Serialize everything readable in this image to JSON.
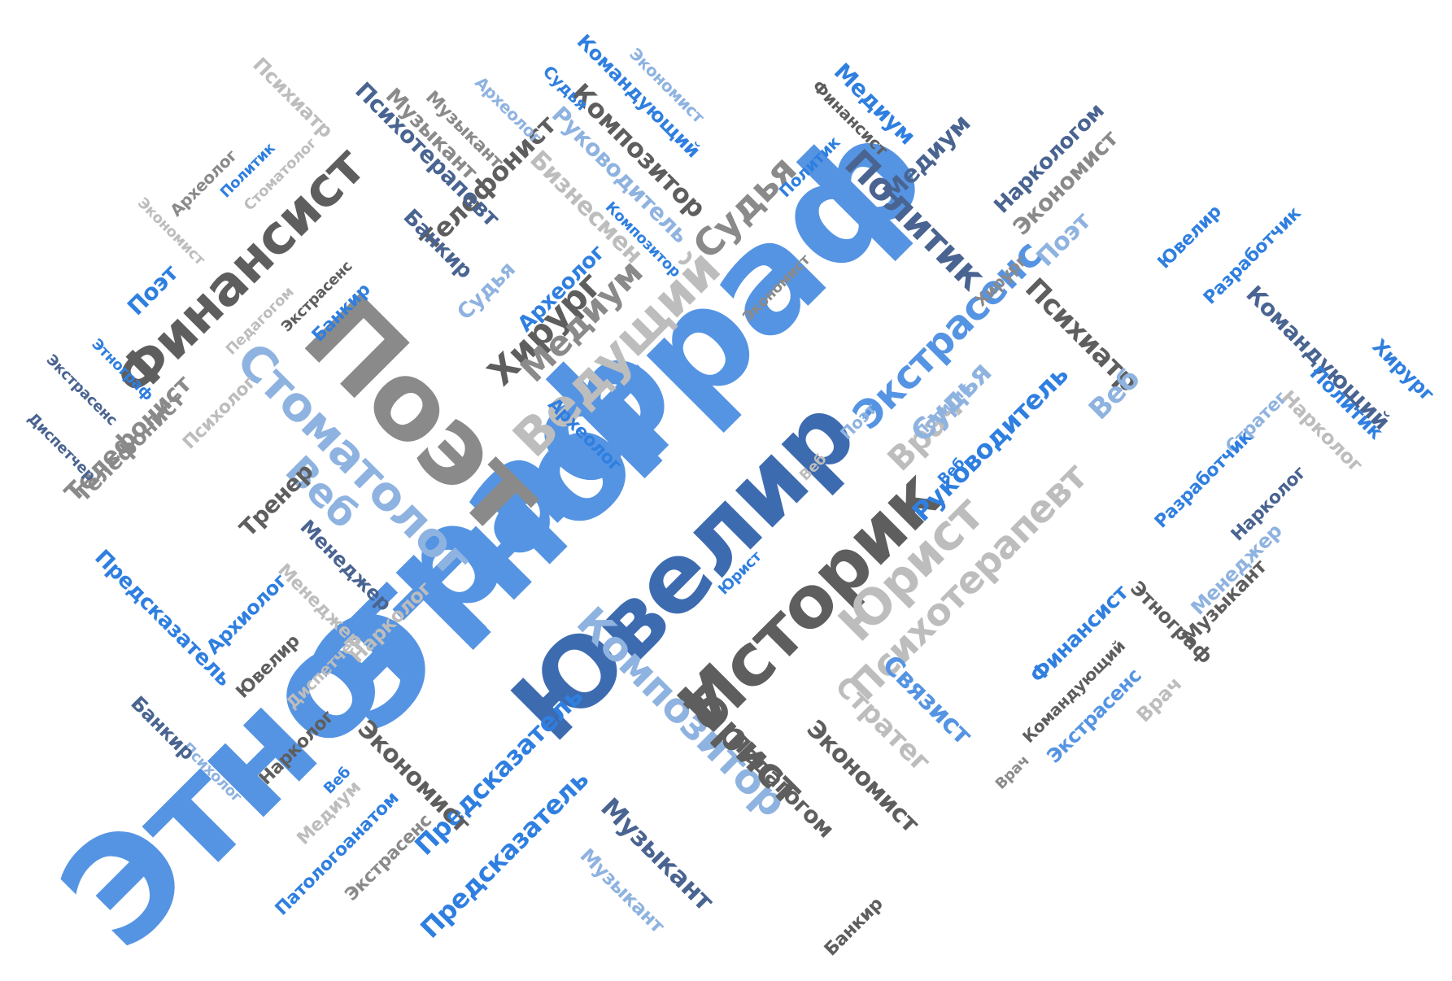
{
  "colors": {
    "blue_bright": "#2f7fe0",
    "blue_mid": "#5594e3",
    "blue_light": "#8fb3e0",
    "blue_dark": "#3d6bb0",
    "slate": "#4a6491",
    "gray_dark": "#5e5e5e",
    "gray_mid": "#8a8a8a",
    "gray_light": "#bdbdbd"
  },
  "words": [
    {
      "text": "Этнограф",
      "color": "blue_mid"
    },
    {
      "text": "Этнограф",
      "color": "blue_mid"
    },
    {
      "text": "Ювелир",
      "color": "blue_dark"
    },
    {
      "text": "Поэт",
      "color": "gray_mid"
    },
    {
      "text": "Историк",
      "color": "gray_dark"
    },
    {
      "text": "Финансист",
      "color": "gray_dark"
    },
    {
      "text": "Стоматолог",
      "color": "blue_light"
    },
    {
      "text": "Ведущий",
      "color": "gray_light"
    },
    {
      "text": "Юрист",
      "color": "gray_light"
    },
    {
      "text": "Психотерапевт",
      "color": "gray_light"
    },
    {
      "text": "Экстрасенс",
      "color": "blue_mid"
    },
    {
      "text": "Композитор",
      "color": "blue_light"
    },
    {
      "text": "Хирург",
      "color": "gray_dark"
    },
    {
      "text": "Медиум",
      "color": "gray_mid"
    },
    {
      "text": "Судья",
      "color": "gray_mid"
    },
    {
      "text": "Политик",
      "color": "slate"
    },
    {
      "text": "Юрист",
      "color": "gray_dark"
    },
    {
      "text": "Руководитель",
      "color": "blue_bright"
    },
    {
      "text": "Психиатр",
      "color": "gray_dark"
    },
    {
      "text": "Веб",
      "color": "blue_light"
    },
    {
      "text": "Врач",
      "color": "gray_light"
    },
    {
      "text": "Предсказатель",
      "color": "blue_bright"
    },
    {
      "text": "Композитор",
      "color": "gray_dark"
    },
    {
      "text": "Руководитель",
      "color": "blue_light"
    },
    {
      "text": "Бизнесмен",
      "color": "gray_light"
    },
    {
      "text": "Телефонист",
      "color": "gray_dark"
    },
    {
      "text": "Телефонист",
      "color": "gray_mid"
    },
    {
      "text": "Музыкант",
      "color": "gray_mid"
    },
    {
      "text": "Командующий",
      "color": "blue_bright"
    },
    {
      "text": "Экономист",
      "color": "blue_light"
    },
    {
      "text": "Медиум",
      "color": "blue_bright"
    },
    {
      "text": "Финансист",
      "color": "gray_dark"
    },
    {
      "text": "Медиум",
      "color": "slate"
    },
    {
      "text": "Наркологом",
      "color": "slate"
    },
    {
      "text": "Экономист",
      "color": "gray_mid"
    },
    {
      "text": "Поэт",
      "color": "blue_light"
    },
    {
      "text": "Ювелир",
      "color": "blue_bright"
    },
    {
      "text": "Разработчик",
      "color": "blue_bright"
    },
    {
      "text": "Командующий",
      "color": "slate"
    },
    {
      "text": "Хирург",
      "color": "blue_bright"
    },
    {
      "text": "Политик",
      "color": "blue_bright"
    },
    {
      "text": "Нарколог",
      "color": "gray_light"
    },
    {
      "text": "Стратег",
      "color": "blue_light"
    },
    {
      "text": "Разработчик",
      "color": "blue_bright"
    },
    {
      "text": "Нарколог",
      "color": "slate"
    },
    {
      "text": "Менеджер",
      "color": "blue_light"
    },
    {
      "text": "Музыкант",
      "color": "gray_dark"
    },
    {
      "text": "Этнограф",
      "color": "gray_dark"
    },
    {
      "text": "Финансист",
      "color": "blue_bright"
    },
    {
      "text": "Командующий",
      "color": "gray_dark"
    },
    {
      "text": "Экстрасенс",
      "color": "blue_mid"
    },
    {
      "text": "Врач",
      "color": "gray_light"
    },
    {
      "text": "Связист",
      "color": "blue_mid"
    },
    {
      "text": "Стратег",
      "color": "gray_light"
    },
    {
      "text": "Экономист",
      "color": "gray_dark"
    },
    {
      "text": "Педагогом",
      "color": "gray_dark"
    },
    {
      "text": "Врач",
      "color": "gray_mid"
    },
    {
      "text": "Банкир",
      "color": "gray_dark"
    },
    {
      "text": "Музыкант",
      "color": "slate"
    },
    {
      "text": "Музыкант",
      "color": "blue_light"
    },
    {
      "text": "Предсказатель",
      "color": "blue_bright"
    },
    {
      "text": "Экономист",
      "color": "gray_dark"
    },
    {
      "text": "Экстрасенс",
      "color": "gray_mid"
    },
    {
      "text": "Патологоанатом",
      "color": "blue_bright"
    },
    {
      "text": "Медиум",
      "color": "gray_light"
    },
    {
      "text": "Веб",
      "color": "blue_bright"
    },
    {
      "text": "Нарколог",
      "color": "gray_dark"
    },
    {
      "text": "Нарколог",
      "color": "gray_light"
    },
    {
      "text": "Диспетчер",
      "color": "gray_light"
    },
    {
      "text": "Ювелир",
      "color": "gray_dark"
    },
    {
      "text": "Менеджер",
      "color": "gray_light"
    },
    {
      "text": "Менеджер",
      "color": "slate"
    },
    {
      "text": "Тренер",
      "color": "gray_dark"
    },
    {
      "text": "Архиолог",
      "color": "blue_bright"
    },
    {
      "text": "Психолог",
      "color": "blue_light"
    },
    {
      "text": "Банкир",
      "color": "slate"
    },
    {
      "text": "Предсказатель",
      "color": "blue_bright"
    },
    {
      "text": "Телефонист",
      "color": "gray_mid"
    },
    {
      "text": "Диспетчер",
      "color": "slate"
    },
    {
      "text": "Экстрасенс",
      "color": "slate"
    },
    {
      "text": "Этнограф",
      "color": "blue_bright"
    },
    {
      "text": "Поэт",
      "color": "blue_bright"
    },
    {
      "text": "Психолог",
      "color": "gray_light"
    },
    {
      "text": "Педагогом",
      "color": "gray_light"
    },
    {
      "text": "Экстрасенс",
      "color": "gray_dark"
    },
    {
      "text": "Банкир",
      "color": "blue_bright"
    },
    {
      "text": "Экономист",
      "color": "gray_light"
    },
    {
      "text": "Археолог",
      "color": "gray_mid"
    },
    {
      "text": "Политик",
      "color": "blue_bright"
    },
    {
      "text": "Стоматолог",
      "color": "gray_light"
    },
    {
      "text": "Психиатр",
      "color": "gray_light"
    },
    {
      "text": "Психотерапевт",
      "color": "slate"
    },
    {
      "text": "Банкир",
      "color": "slate"
    },
    {
      "text": "Музыкант",
      "color": "gray_mid"
    },
    {
      "text": "Археолог",
      "color": "blue_light"
    },
    {
      "text": "Судья",
      "color": "blue_bright"
    },
    {
      "text": "Судья",
      "color": "blue_light"
    },
    {
      "text": "Археолог",
      "color": "blue_bright"
    },
    {
      "text": "Композитор",
      "color": "blue_bright"
    },
    {
      "text": "Археолог",
      "color": "blue_bright"
    },
    {
      "text": "Поэт",
      "color": "blue_light"
    },
    {
      "text": "Веб",
      "color": "gray_light"
    },
    {
      "text": "Веб",
      "color": "blue_bright"
    },
    {
      "text": "Юрист",
      "color": "blue_bright"
    },
    {
      "text": "Судья",
      "color": "blue_light"
    },
    {
      "text": "Хирург",
      "color": "gray_mid"
    },
    {
      "text": "Политик",
      "color": "blue_light"
    },
    {
      "text": "Веб",
      "color": "blue_light"
    },
    {
      "text": "Экономист",
      "color": "gray_mid"
    },
    {
      "text": "Политик",
      "color": "blue_bright"
    }
  ]
}
